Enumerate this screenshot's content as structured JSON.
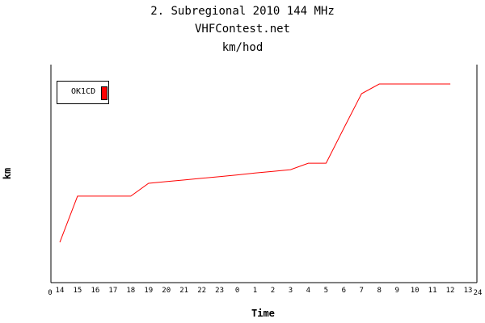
{
  "chart_data": {
    "type": "line",
    "title": "2. Subregional 2010 144 MHz",
    "subtitle": "VHFContest.net",
    "subtitle2": "km/hod",
    "xlabel": "Time",
    "ylabel": "km",
    "x_tick_labels": [
      "14",
      "15",
      "16",
      "17",
      "18",
      "19",
      "20",
      "21",
      "22",
      "23",
      "0",
      "1",
      "2",
      "3",
      "4",
      "5",
      "6",
      "7",
      "8",
      "9",
      "10",
      "11",
      "12",
      "13"
    ],
    "x_axis_end_labels": [
      "0",
      "24"
    ],
    "ylim": [
      0,
      100
    ],
    "grid": false,
    "legend_position": "top-left",
    "series": [
      {
        "name": "OK1CD",
        "color": "#ff0000",
        "x": [
          "14",
          "15",
          "16",
          "17",
          "18",
          "19",
          "20",
          "21",
          "22",
          "23",
          "0",
          "1",
          "2",
          "3",
          "4",
          "5",
          "6",
          "7",
          "8",
          "9",
          "10",
          "11",
          "12"
        ],
        "values": [
          19.2,
          41.2,
          41.2,
          41.2,
          41.2,
          47.3,
          48.1,
          48.9,
          49.7,
          50.5,
          51.3,
          52.2,
          53.0,
          53.8,
          56.9,
          56.9,
          73.5,
          90.0,
          94.6,
          94.6,
          94.6,
          94.6,
          94.6
        ]
      }
    ]
  }
}
